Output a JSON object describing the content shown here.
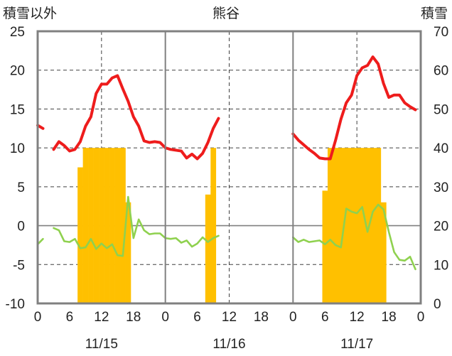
{
  "labels": {
    "left_axis": "積雪以外",
    "center_title": "熊谷",
    "right_axis": "積雪"
  },
  "colors": {
    "temperature": "#ee1c1c",
    "precip_or_wind": "#8fd14f",
    "snow_depth": "#ffc000",
    "frame": "#808080",
    "grid": "#404040"
  },
  "chart_data": {
    "type": "line",
    "title": "熊谷",
    "ylabel_left": "積雪以外",
    "ylabel_right": "積雪",
    "ylim_left": [
      -10,
      25
    ],
    "ylim_right": [
      0,
      70
    ],
    "yticks_left": [
      -10,
      -5,
      0,
      5,
      10,
      15,
      20,
      25
    ],
    "yticks_right": [
      0,
      10,
      20,
      30,
      40,
      50,
      60,
      70
    ],
    "days": [
      "11/15",
      "11/16",
      "11/17"
    ],
    "hour_ticks": [
      "0",
      "6",
      "12",
      "18",
      "0",
      "6",
      "12",
      "18",
      "0",
      "6",
      "12",
      "18",
      "0"
    ],
    "grid": true,
    "x_unit": "hours since 11/15 00:00",
    "series": [
      {
        "name": "",
        "kind": "line",
        "axis": "left",
        "color": "#ee1c1c",
        "segments": [
          [
            [
              0,
              12.9
            ],
            [
              1,
              12.5
            ]
          ],
          [
            [
              3,
              9.8
            ],
            [
              4,
              10.8
            ],
            [
              5,
              10.3
            ],
            [
              6,
              9.6
            ],
            [
              7,
              9.8
            ],
            [
              8,
              10.8
            ],
            [
              9,
              12.8
            ],
            [
              10,
              14.0
            ],
            [
              11,
              17.0
            ],
            [
              12,
              18.2
            ],
            [
              13,
              18.2
            ],
            [
              14,
              19.0
            ],
            [
              15,
              19.3
            ],
            [
              16,
              17.6
            ],
            [
              17,
              16.0
            ],
            [
              18,
              14.0
            ],
            [
              19,
              12.8
            ],
            [
              20,
              10.9
            ],
            [
              21,
              10.7
            ],
            [
              22,
              10.8
            ],
            [
              23,
              10.7
            ],
            [
              24,
              10.0
            ],
            [
              25,
              9.8
            ],
            [
              26,
              9.7
            ],
            [
              27,
              9.6
            ],
            [
              28,
              8.7
            ],
            [
              29,
              9.2
            ],
            [
              30,
              8.6
            ],
            [
              31,
              9.3
            ],
            [
              32,
              10.7
            ],
            [
              33,
              12.5
            ],
            [
              34,
              13.8
            ]
          ],
          [
            [
              48,
              11.8
            ],
            [
              49,
              11.0
            ],
            [
              50,
              10.4
            ],
            [
              51,
              9.8
            ],
            [
              52,
              9.3
            ],
            [
              53,
              8.7
            ],
            [
              54,
              8.6
            ],
            [
              55,
              8.6
            ],
            [
              56,
              11.0
            ],
            [
              57,
              13.7
            ],
            [
              58,
              15.8
            ],
            [
              59,
              16.8
            ],
            [
              60,
              19.3
            ],
            [
              61,
              20.3
            ],
            [
              62,
              20.6
            ],
            [
              63,
              21.7
            ],
            [
              64,
              20.8
            ],
            [
              65,
              18.3
            ],
            [
              66,
              16.5
            ],
            [
              67,
              16.8
            ],
            [
              68,
              16.8
            ],
            [
              69,
              15.8
            ],
            [
              70,
              15.3
            ],
            [
              71,
              14.9
            ]
          ]
        ]
      },
      {
        "name": "",
        "kind": "line",
        "axis": "left",
        "color": "#8fd14f",
        "segments": [
          [
            [
              0,
              -2.4
            ],
            [
              1,
              -1.7
            ]
          ],
          [
            [
              3,
              -0.3
            ],
            [
              4,
              -0.6
            ],
            [
              5,
              -2.0
            ],
            [
              6,
              -2.1
            ],
            [
              7,
              -1.7
            ],
            [
              8,
              -2.9
            ],
            [
              9,
              -2.8
            ],
            [
              10,
              -1.7
            ],
            [
              11,
              -3.0
            ],
            [
              12,
              -2.3
            ],
            [
              13,
              -2.9
            ],
            [
              14,
              -2.4
            ],
            [
              15,
              -3.8
            ],
            [
              16,
              -3.9
            ],
            [
              17,
              3.7
            ],
            [
              18,
              -1.6
            ],
            [
              19,
              0.8
            ],
            [
              20,
              -0.6
            ],
            [
              21,
              -1.1
            ],
            [
              22,
              -1.0
            ],
            [
              23,
              -1.0
            ],
            [
              24,
              -1.6
            ],
            [
              25,
              -1.7
            ],
            [
              26,
              -1.6
            ],
            [
              27,
              -2.2
            ],
            [
              28,
              -1.9
            ],
            [
              29,
              -2.7
            ],
            [
              30,
              -2.3
            ],
            [
              31,
              -1.5
            ],
            [
              32,
              -2.1
            ],
            [
              33,
              -1.6
            ],
            [
              34,
              -1.3
            ]
          ],
          [
            [
              48,
              -1.5
            ],
            [
              49,
              -2.1
            ],
            [
              50,
              -1.8
            ],
            [
              51,
              -2.1
            ],
            [
              52,
              -2.0
            ],
            [
              53,
              -1.9
            ],
            [
              54,
              -2.4
            ],
            [
              55,
              -1.8
            ],
            [
              56,
              -2.5
            ],
            [
              57,
              -2.8
            ],
            [
              58,
              2.2
            ],
            [
              59,
              1.8
            ],
            [
              60,
              1.6
            ],
            [
              61,
              2.4
            ],
            [
              62,
              -0.8
            ],
            [
              63,
              1.8
            ],
            [
              64,
              2.7
            ],
            [
              65,
              2.1
            ],
            [
              66,
              -0.8
            ],
            [
              67,
              -3.4
            ],
            [
              68,
              -4.4
            ],
            [
              69,
              -4.5
            ],
            [
              70,
              -4.0
            ],
            [
              71,
              -5.6
            ]
          ]
        ]
      },
      {
        "name": "",
        "kind": "bar",
        "axis": "right",
        "color": "#ffc000",
        "bars": [
          [
            8,
            35
          ],
          [
            9,
            40
          ],
          [
            10,
            40
          ],
          [
            11,
            40
          ],
          [
            12,
            40
          ],
          [
            13,
            40
          ],
          [
            14,
            40
          ],
          [
            15,
            40
          ],
          [
            16,
            40
          ],
          [
            17,
            26
          ],
          [
            32,
            28
          ],
          [
            33,
            40
          ],
          [
            54,
            29
          ],
          [
            55,
            40
          ],
          [
            56,
            40
          ],
          [
            57,
            40
          ],
          [
            58,
            40
          ],
          [
            59,
            40
          ],
          [
            60,
            40
          ],
          [
            61,
            40
          ],
          [
            62,
            40
          ],
          [
            63,
            40
          ],
          [
            64,
            40
          ],
          [
            65,
            26
          ]
        ]
      }
    ]
  }
}
